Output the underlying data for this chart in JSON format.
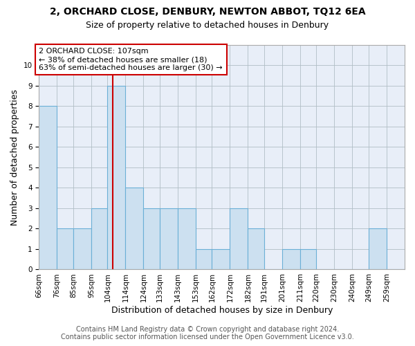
{
  "title1": "2, ORCHARD CLOSE, DENBURY, NEWTON ABBOT, TQ12 6EA",
  "title2": "Size of property relative to detached houses in Denbury",
  "xlabel": "Distribution of detached houses by size in Denbury",
  "ylabel": "Number of detached properties",
  "footer1": "Contains HM Land Registry data © Crown copyright and database right 2024.",
  "footer2": "Contains public sector information licensed under the Open Government Licence v3.0.",
  "annotation_line1": "2 ORCHARD CLOSE: 107sqm",
  "annotation_line2": "← 38% of detached houses are smaller (18)",
  "annotation_line3": "63% of semi-detached houses are larger (30) →",
  "bar_left_edges": [
    66,
    76,
    85,
    95,
    104,
    114,
    124,
    133,
    143,
    153,
    162,
    172,
    182,
    191,
    201,
    211,
    220,
    230,
    240,
    249,
    259
  ],
  "bar_heights": [
    8,
    2,
    2,
    3,
    9,
    4,
    3,
    3,
    3,
    1,
    1,
    3,
    2,
    0,
    1,
    1,
    0,
    0,
    0,
    2,
    0
  ],
  "bar_color": "#cce0f0",
  "bar_edge_color": "#6aafd6",
  "bar_edge_width": 0.8,
  "ref_line_color": "#cc0000",
  "ref_line_x": 107,
  "ylim": [
    0,
    11
  ],
  "yticks": [
    0,
    1,
    2,
    3,
    4,
    5,
    6,
    7,
    8,
    9,
    10,
    11
  ],
  "grid_color": "#b0bec5",
  "background_color": "#e8eef8",
  "title1_fontsize": 10,
  "title2_fontsize": 9,
  "xlabel_fontsize": 9,
  "ylabel_fontsize": 9,
  "tick_fontsize": 7.5,
  "annotation_fontsize": 8,
  "footer_fontsize": 7
}
